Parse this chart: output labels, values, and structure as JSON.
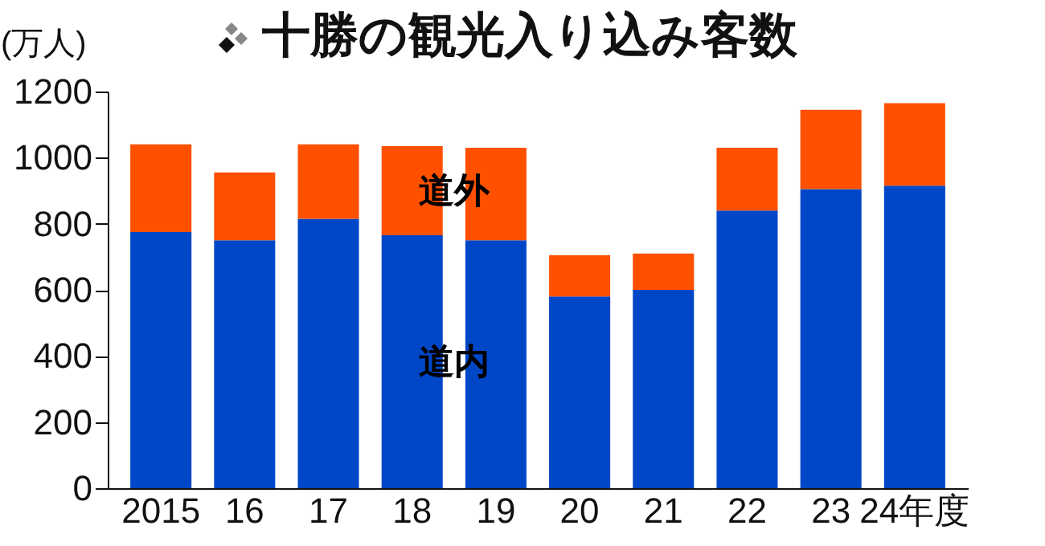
{
  "chart_data": {
    "type": "bar",
    "title": "十勝の観光入り込み客数",
    "ylabel": "(万人)",
    "categories": [
      "2015",
      "16",
      "17",
      "18",
      "19",
      "20",
      "21",
      "22",
      "23",
      "24年度"
    ],
    "stacked": true,
    "series": [
      {
        "name": "道内",
        "color": "#0047c8",
        "values": [
          775,
          750,
          815,
          765,
          750,
          580,
          600,
          840,
          905,
          915
        ]
      },
      {
        "name": "道外",
        "color": "#ff5000",
        "values": [
          265,
          205,
          225,
          270,
          280,
          125,
          110,
          190,
          240,
          250
        ]
      }
    ],
    "ylim": [
      0,
      1200
    ],
    "yticks": [
      0,
      200,
      400,
      600,
      800,
      1000,
      1200
    ],
    "grid": false
  }
}
